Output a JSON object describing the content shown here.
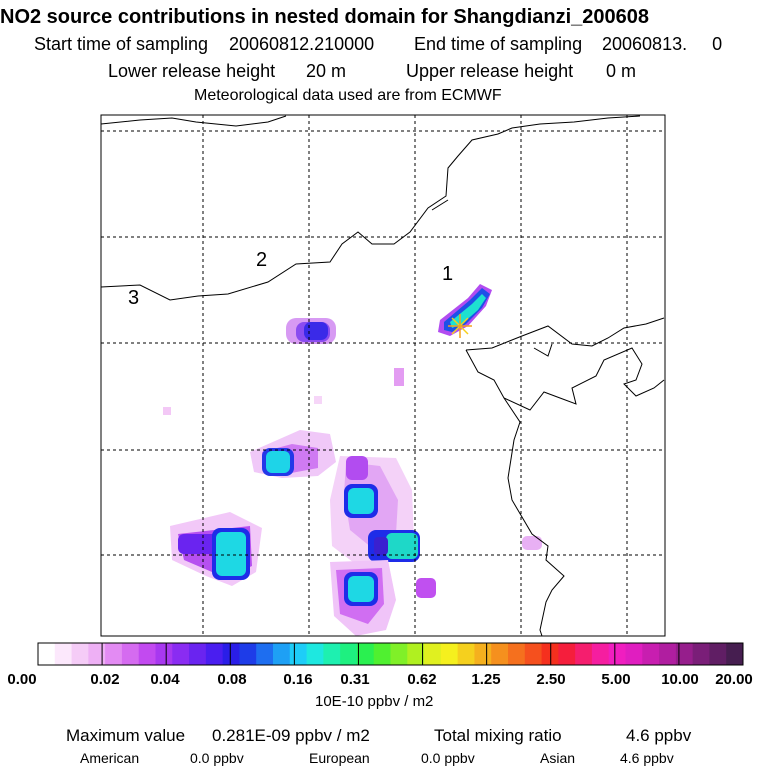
{
  "header": {
    "title": "NO2 source contributions in nested domain for Shangdianzi_200608",
    "start_label": "Start time of sampling",
    "start_value": "20060812.210000",
    "end_label": "End time of sampling",
    "end_value": "20060813.     0",
    "lower_label": "Lower release height",
    "lower_value": "20 m",
    "upper_label": "Upper release height",
    "upper_value": "0 m",
    "met_note": "Meteorological data used are from ECMWF"
  },
  "map": {
    "region_labels": [
      "1",
      "2",
      "3"
    ],
    "source_marker": "star-marker",
    "colors": {
      "land": "#ffffff",
      "coastline": "#000000",
      "grid": "#000000"
    }
  },
  "colorbar": {
    "tick_labels": [
      "0.00",
      "0.02",
      "0.04",
      "0.08",
      "0.16",
      "0.31",
      "0.62",
      "1.25",
      "2.50",
      "5.00",
      "10.00",
      "20.00"
    ],
    "unit_label": "10E-10 ppbv / m2",
    "colors": [
      "#ffffff",
      "#fce8fc",
      "#f5ccf7",
      "#eeb0f5",
      "#e38bf3",
      "#d56bf0",
      "#c24af0",
      "#a838f0",
      "#8a2cf2",
      "#6a24f0",
      "#4a1ef0",
      "#2a1ee8",
      "#1e3ce8",
      "#1e6ef0",
      "#1ea0f5",
      "#1ecdf8",
      "#1ee8e0",
      "#1ef0b0",
      "#1ef080",
      "#2af050",
      "#50f030",
      "#80f028",
      "#b0f020",
      "#e0f020",
      "#f5f01e",
      "#f5d01e",
      "#f5b01e",
      "#f5901e",
      "#f5701e",
      "#f5501e",
      "#f5301e",
      "#f51e3c",
      "#f51e6e",
      "#f51ea0",
      "#f01ec0",
      "#e01ec0",
      "#c81eb0",
      "#b01ea0",
      "#961e8c",
      "#7a1e78",
      "#601e64",
      "#461e50"
    ]
  },
  "footer": {
    "max_label": "Maximum value",
    "max_value": "0.281E-09 ppbv / m2",
    "total_label": "Total mixing ratio",
    "total_value": "4.6 ppbv",
    "american_label": "American",
    "american_value": "0.0 ppbv",
    "european_label": "European",
    "european_value": "0.0 ppbv",
    "asian_label": "Asian",
    "asian_value": "4.6 ppbv"
  }
}
